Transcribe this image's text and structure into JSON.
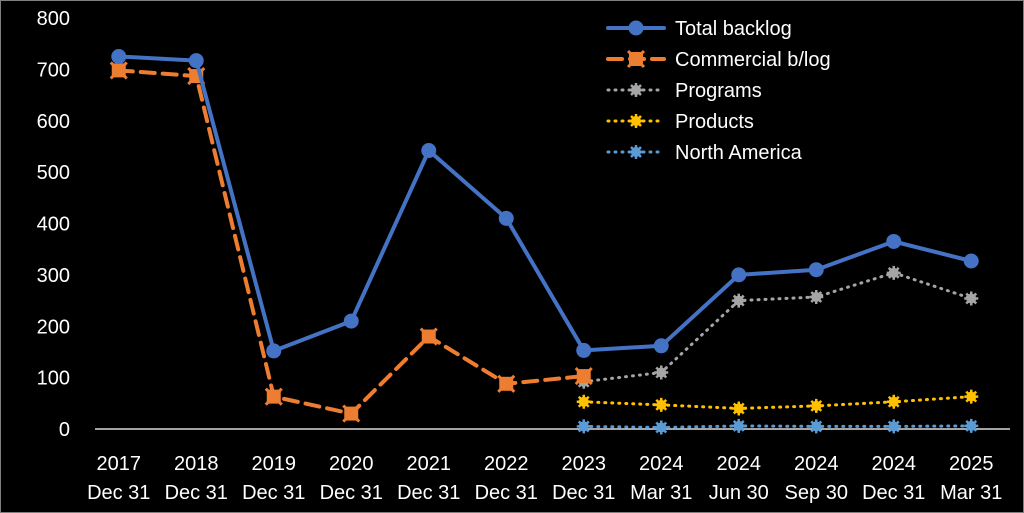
{
  "chart_data": {
    "type": "line",
    "categories": [
      [
        "2017",
        "Dec 31"
      ],
      [
        "2018",
        "Dec 31"
      ],
      [
        "2019",
        "Dec 31"
      ],
      [
        "2020",
        "Dec 31"
      ],
      [
        "2021",
        "Dec 31"
      ],
      [
        "2022",
        "Dec 31"
      ],
      [
        "2023",
        "Dec 31"
      ],
      [
        "2024",
        "Mar 31"
      ],
      [
        "2024",
        "Jun 30"
      ],
      [
        "2024",
        "Sep 30"
      ],
      [
        "2024",
        "Dec 31"
      ],
      [
        "2025",
        "Mar 31"
      ]
    ],
    "ylim": [
      0,
      800
    ],
    "yticks": [
      0,
      100,
      200,
      300,
      400,
      500,
      600,
      700,
      800
    ],
    "grid": false,
    "legend_position": "top-right",
    "series": [
      {
        "name": "Total backlog",
        "color": "#4472c4",
        "style": "solid",
        "marker": "circle",
        "values": [
          725,
          717,
          152,
          210,
          542,
          410,
          153,
          162,
          300,
          310,
          365,
          327
        ]
      },
      {
        "name": "Commercial b/log",
        "color": "#ed7d31",
        "style": "dashed",
        "marker": "square-x",
        "values": [
          698,
          687,
          63,
          30,
          180,
          88,
          103,
          null,
          null,
          null,
          null,
          null
        ]
      },
      {
        "name": "Programs",
        "color": "#a5a5a5",
        "style": "dotted",
        "marker": "star",
        "values": [
          null,
          null,
          null,
          null,
          null,
          null,
          92,
          110,
          250,
          257,
          304,
          254
        ]
      },
      {
        "name": "Products",
        "color": "#ffc000",
        "style": "dotted",
        "marker": "star",
        "values": [
          null,
          null,
          null,
          null,
          null,
          null,
          53,
          47,
          40,
          45,
          53,
          63
        ]
      },
      {
        "name": "North America",
        "color": "#5b9bd5",
        "style": "dotted",
        "marker": "star",
        "values": [
          null,
          null,
          null,
          null,
          null,
          null,
          5,
          3,
          6,
          5,
          5,
          6
        ]
      }
    ]
  }
}
